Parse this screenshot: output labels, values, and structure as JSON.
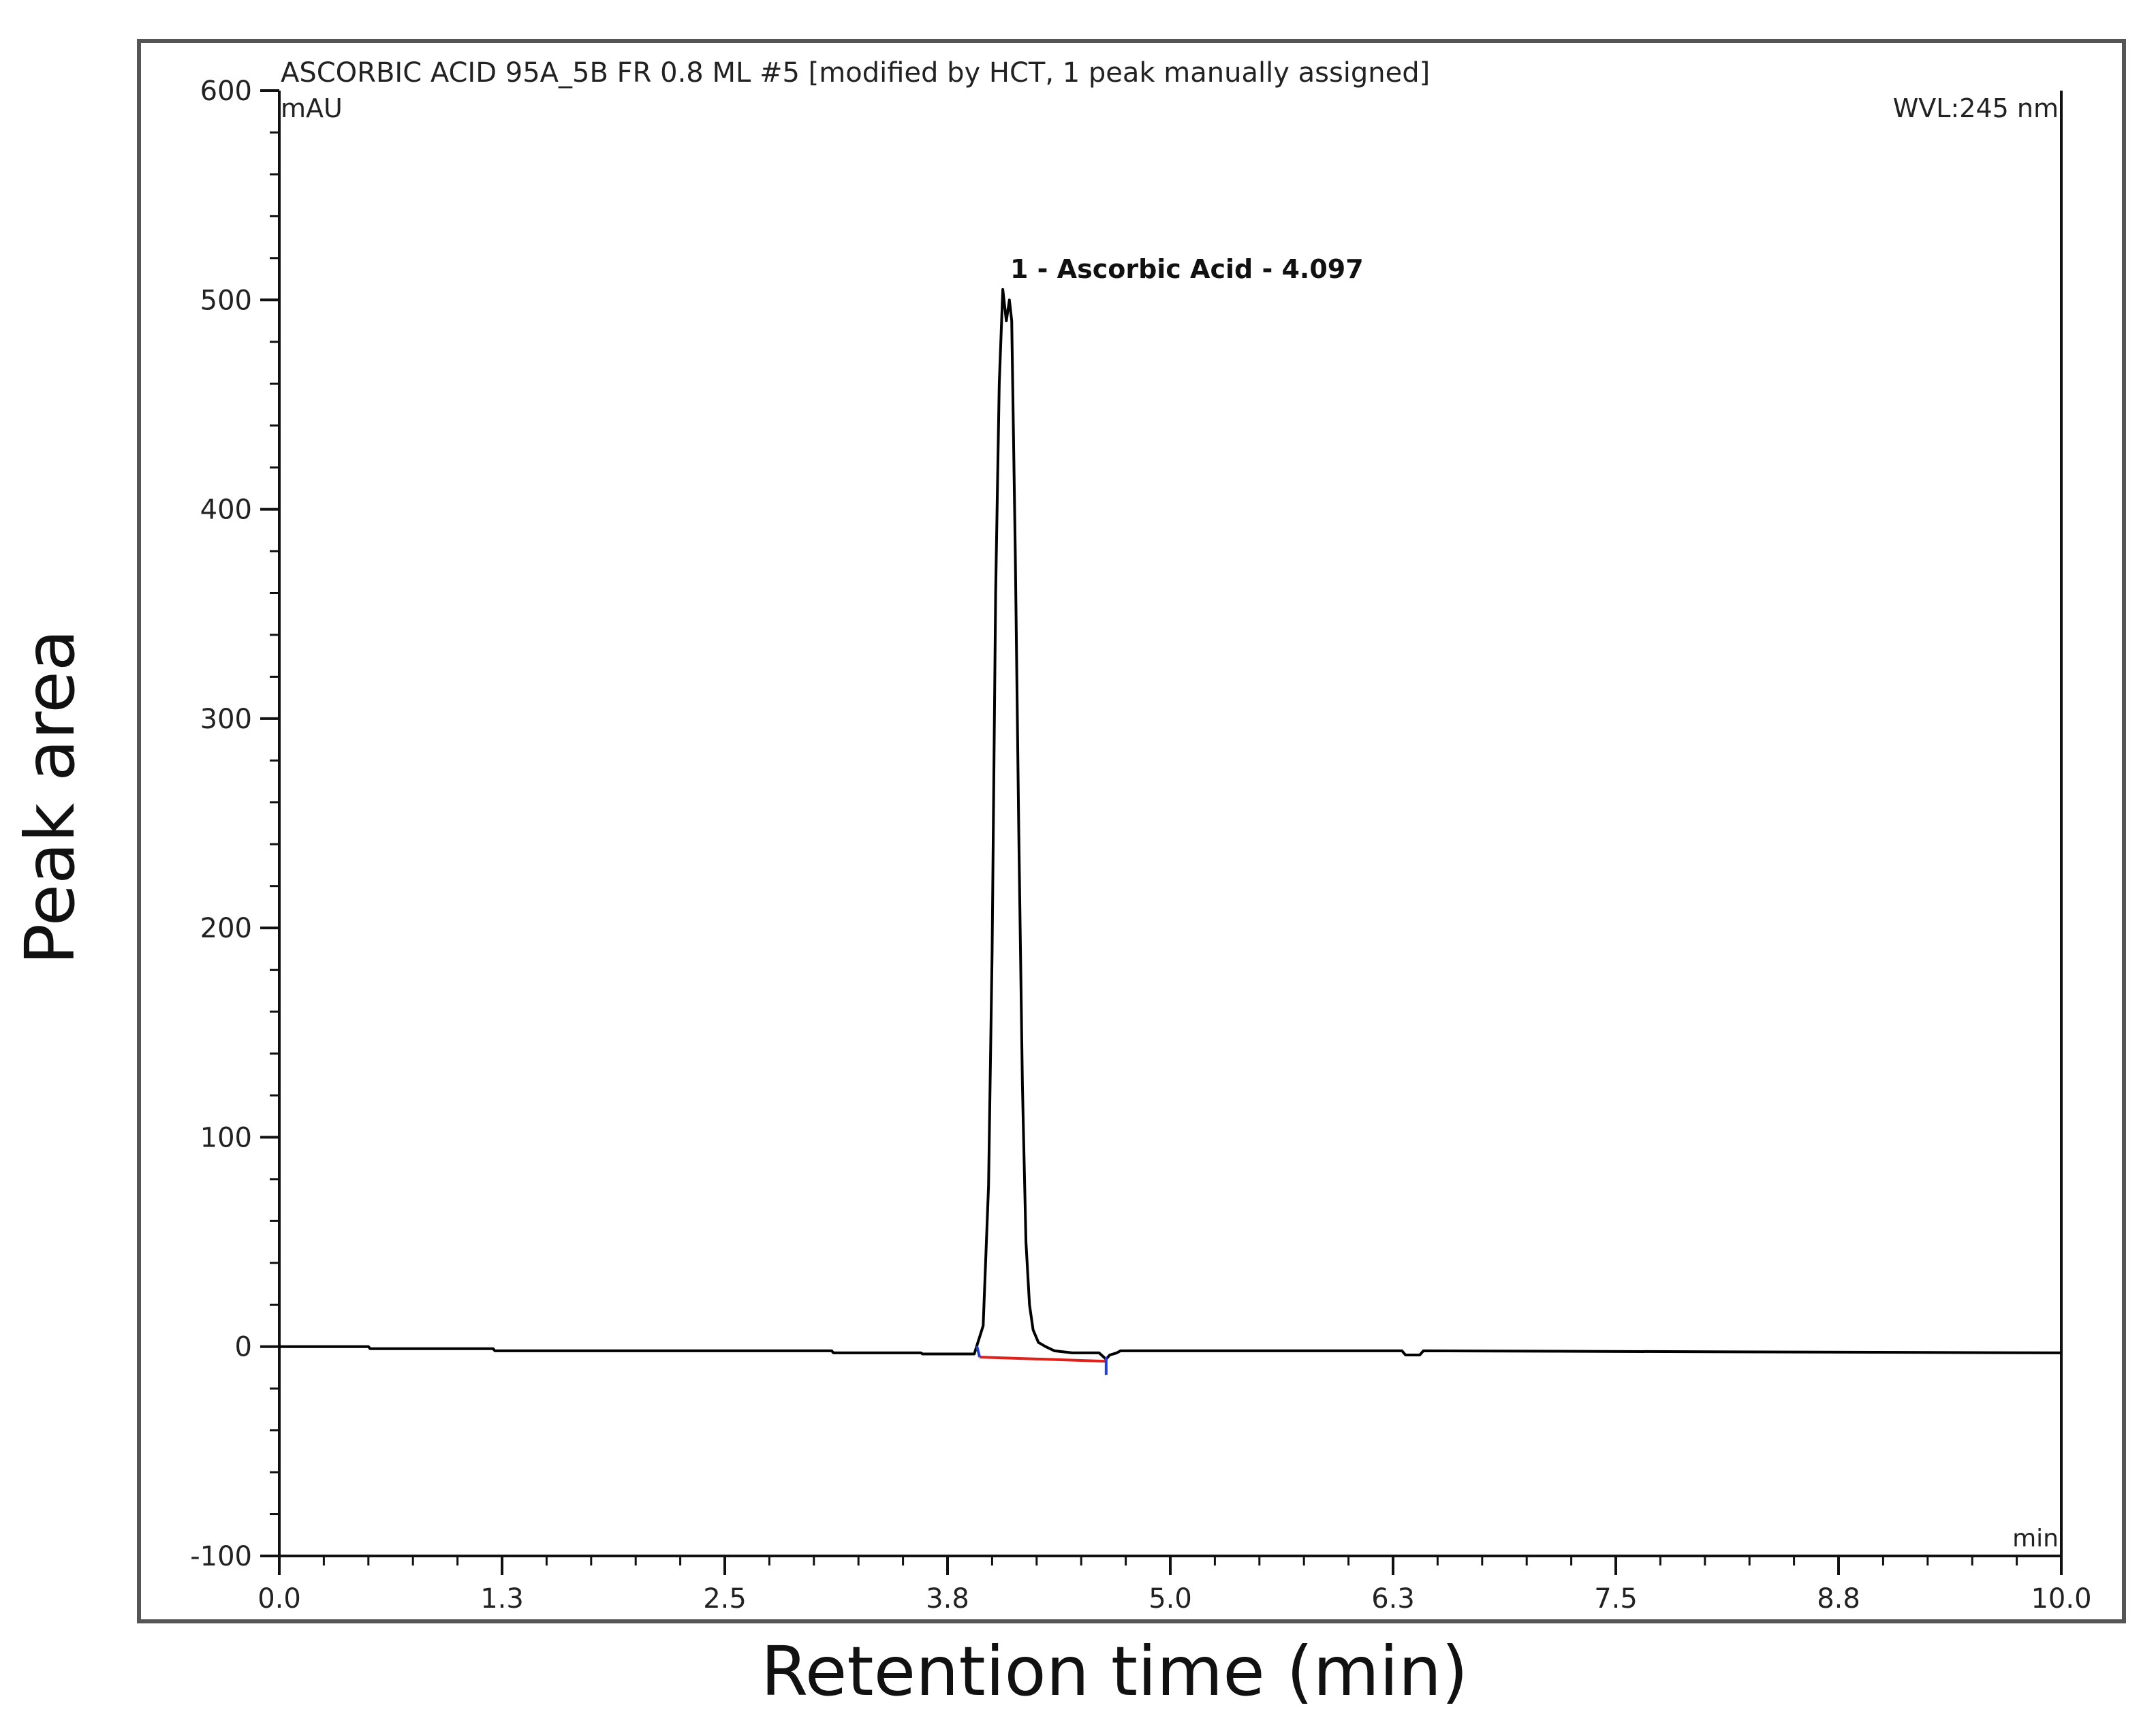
{
  "chart_data": {
    "type": "line",
    "title": "ASCORBIC ACID 95A_5B FR 0.8 ML #5 [modified by HCT, 1 peak manually assigned]",
    "y_unit": "mAU",
    "wavelength": "WVL:245 nm",
    "x_unit": "min",
    "xlabel": "Retention time (min)",
    "ylabel": "Peak area",
    "xlim": [
      0,
      10
    ],
    "ylim": [
      -100,
      600
    ],
    "x_ticks": [
      "0.0",
      "1.3",
      "2.5",
      "3.8",
      "5.0",
      "6.3",
      "7.5",
      "8.8",
      "10.0"
    ],
    "y_ticks": [
      "-100",
      "0",
      "100",
      "200",
      "300",
      "400",
      "500",
      "600"
    ],
    "grid": false,
    "peak_annotation": "1 - Ascorbic Acid - 4.097",
    "peak": {
      "x": 4.097,
      "y": 505
    },
    "series": [
      {
        "color": "#000000",
        "x": [
          0.0,
          0.5,
          0.51,
          1.2,
          1.21,
          3.1,
          3.11,
          3.6,
          3.61,
          3.9,
          3.95,
          3.98,
          4.0,
          4.02,
          4.04,
          4.06,
          4.08,
          4.097,
          4.11,
          4.13,
          4.15,
          4.17,
          4.19,
          4.21,
          4.23,
          4.26,
          4.3,
          4.35,
          4.45,
          4.6,
          4.64,
          4.66,
          4.7,
          4.72,
          4.8,
          6.3,
          6.32,
          6.4,
          6.42,
          10.0
        ],
        "y": [
          0.0,
          0.0,
          -1.0,
          -1.0,
          -2.0,
          -2.0,
          -3.0,
          -3.0,
          -3.5,
          -3.5,
          10.0,
          77.0,
          188.0,
          360.0,
          460.0,
          505.0,
          490.0,
          500.0,
          490.0,
          380.0,
          245.0,
          125.0,
          50.0,
          20.0,
          8.0,
          2.0,
          0.0,
          -2.0,
          -3.0,
          -3.0,
          -6.0,
          -4.0,
          -3.0,
          -2.0,
          -2.0,
          -2.0,
          -4.0,
          -4.0,
          -2.0,
          -3.0
        ]
      }
    ],
    "baseline": {
      "color": "#e0201b",
      "x": [
        3.93,
        4.64
      ],
      "y": [
        -5.0,
        -7.0
      ]
    },
    "integration_markers_color": "#1f3fd6"
  }
}
